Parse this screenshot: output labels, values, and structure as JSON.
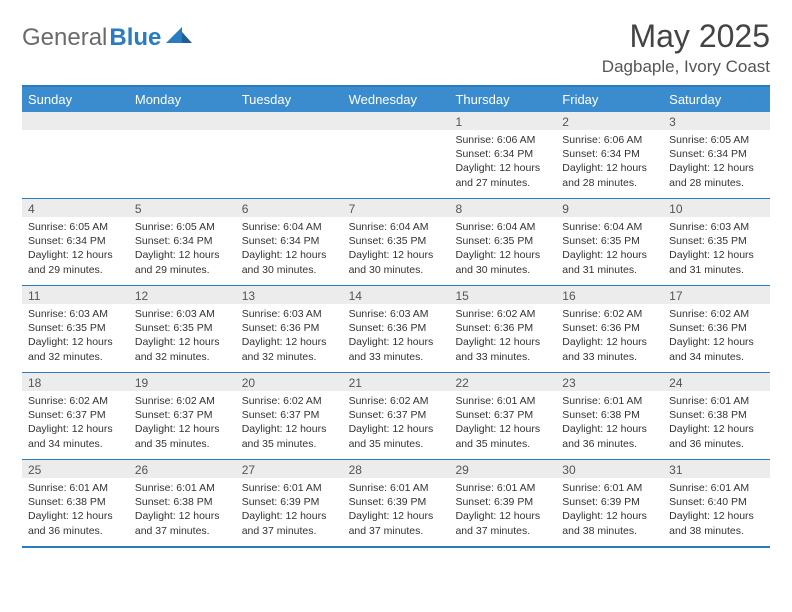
{
  "brand": {
    "general": "General",
    "blue": "Blue"
  },
  "title": "May 2025",
  "location": "Dagbaple, Ivory Coast",
  "header_bg": "#3a8ccf",
  "border_color": "#2a7cc0",
  "daynum_bg": "#ececec",
  "day_headers": [
    "Sunday",
    "Monday",
    "Tuesday",
    "Wednesday",
    "Thursday",
    "Friday",
    "Saturday"
  ],
  "weeks": [
    [
      {
        "n": "",
        "sr": "",
        "ss": "",
        "dl": ""
      },
      {
        "n": "",
        "sr": "",
        "ss": "",
        "dl": ""
      },
      {
        "n": "",
        "sr": "",
        "ss": "",
        "dl": ""
      },
      {
        "n": "",
        "sr": "",
        "ss": "",
        "dl": ""
      },
      {
        "n": "1",
        "sr": "6:06 AM",
        "ss": "6:34 PM",
        "dl": "12 hours and 27 minutes."
      },
      {
        "n": "2",
        "sr": "6:06 AM",
        "ss": "6:34 PM",
        "dl": "12 hours and 28 minutes."
      },
      {
        "n": "3",
        "sr": "6:05 AM",
        "ss": "6:34 PM",
        "dl": "12 hours and 28 minutes."
      }
    ],
    [
      {
        "n": "4",
        "sr": "6:05 AM",
        "ss": "6:34 PM",
        "dl": "12 hours and 29 minutes."
      },
      {
        "n": "5",
        "sr": "6:05 AM",
        "ss": "6:34 PM",
        "dl": "12 hours and 29 minutes."
      },
      {
        "n": "6",
        "sr": "6:04 AM",
        "ss": "6:34 PM",
        "dl": "12 hours and 30 minutes."
      },
      {
        "n": "7",
        "sr": "6:04 AM",
        "ss": "6:35 PM",
        "dl": "12 hours and 30 minutes."
      },
      {
        "n": "8",
        "sr": "6:04 AM",
        "ss": "6:35 PM",
        "dl": "12 hours and 30 minutes."
      },
      {
        "n": "9",
        "sr": "6:04 AM",
        "ss": "6:35 PM",
        "dl": "12 hours and 31 minutes."
      },
      {
        "n": "10",
        "sr": "6:03 AM",
        "ss": "6:35 PM",
        "dl": "12 hours and 31 minutes."
      }
    ],
    [
      {
        "n": "11",
        "sr": "6:03 AM",
        "ss": "6:35 PM",
        "dl": "12 hours and 32 minutes."
      },
      {
        "n": "12",
        "sr": "6:03 AM",
        "ss": "6:35 PM",
        "dl": "12 hours and 32 minutes."
      },
      {
        "n": "13",
        "sr": "6:03 AM",
        "ss": "6:36 PM",
        "dl": "12 hours and 32 minutes."
      },
      {
        "n": "14",
        "sr": "6:03 AM",
        "ss": "6:36 PM",
        "dl": "12 hours and 33 minutes."
      },
      {
        "n": "15",
        "sr": "6:02 AM",
        "ss": "6:36 PM",
        "dl": "12 hours and 33 minutes."
      },
      {
        "n": "16",
        "sr": "6:02 AM",
        "ss": "6:36 PM",
        "dl": "12 hours and 33 minutes."
      },
      {
        "n": "17",
        "sr": "6:02 AM",
        "ss": "6:36 PM",
        "dl": "12 hours and 34 minutes."
      }
    ],
    [
      {
        "n": "18",
        "sr": "6:02 AM",
        "ss": "6:37 PM",
        "dl": "12 hours and 34 minutes."
      },
      {
        "n": "19",
        "sr": "6:02 AM",
        "ss": "6:37 PM",
        "dl": "12 hours and 35 minutes."
      },
      {
        "n": "20",
        "sr": "6:02 AM",
        "ss": "6:37 PM",
        "dl": "12 hours and 35 minutes."
      },
      {
        "n": "21",
        "sr": "6:02 AM",
        "ss": "6:37 PM",
        "dl": "12 hours and 35 minutes."
      },
      {
        "n": "22",
        "sr": "6:01 AM",
        "ss": "6:37 PM",
        "dl": "12 hours and 35 minutes."
      },
      {
        "n": "23",
        "sr": "6:01 AM",
        "ss": "6:38 PM",
        "dl": "12 hours and 36 minutes."
      },
      {
        "n": "24",
        "sr": "6:01 AM",
        "ss": "6:38 PM",
        "dl": "12 hours and 36 minutes."
      }
    ],
    [
      {
        "n": "25",
        "sr": "6:01 AM",
        "ss": "6:38 PM",
        "dl": "12 hours and 36 minutes."
      },
      {
        "n": "26",
        "sr": "6:01 AM",
        "ss": "6:38 PM",
        "dl": "12 hours and 37 minutes."
      },
      {
        "n": "27",
        "sr": "6:01 AM",
        "ss": "6:39 PM",
        "dl": "12 hours and 37 minutes."
      },
      {
        "n": "28",
        "sr": "6:01 AM",
        "ss": "6:39 PM",
        "dl": "12 hours and 37 minutes."
      },
      {
        "n": "29",
        "sr": "6:01 AM",
        "ss": "6:39 PM",
        "dl": "12 hours and 37 minutes."
      },
      {
        "n": "30",
        "sr": "6:01 AM",
        "ss": "6:39 PM",
        "dl": "12 hours and 38 minutes."
      },
      {
        "n": "31",
        "sr": "6:01 AM",
        "ss": "6:40 PM",
        "dl": "12 hours and 38 minutes."
      }
    ]
  ],
  "labels": {
    "sunrise": "Sunrise: ",
    "sunset": "Sunset: ",
    "daylight": "Daylight: "
  }
}
